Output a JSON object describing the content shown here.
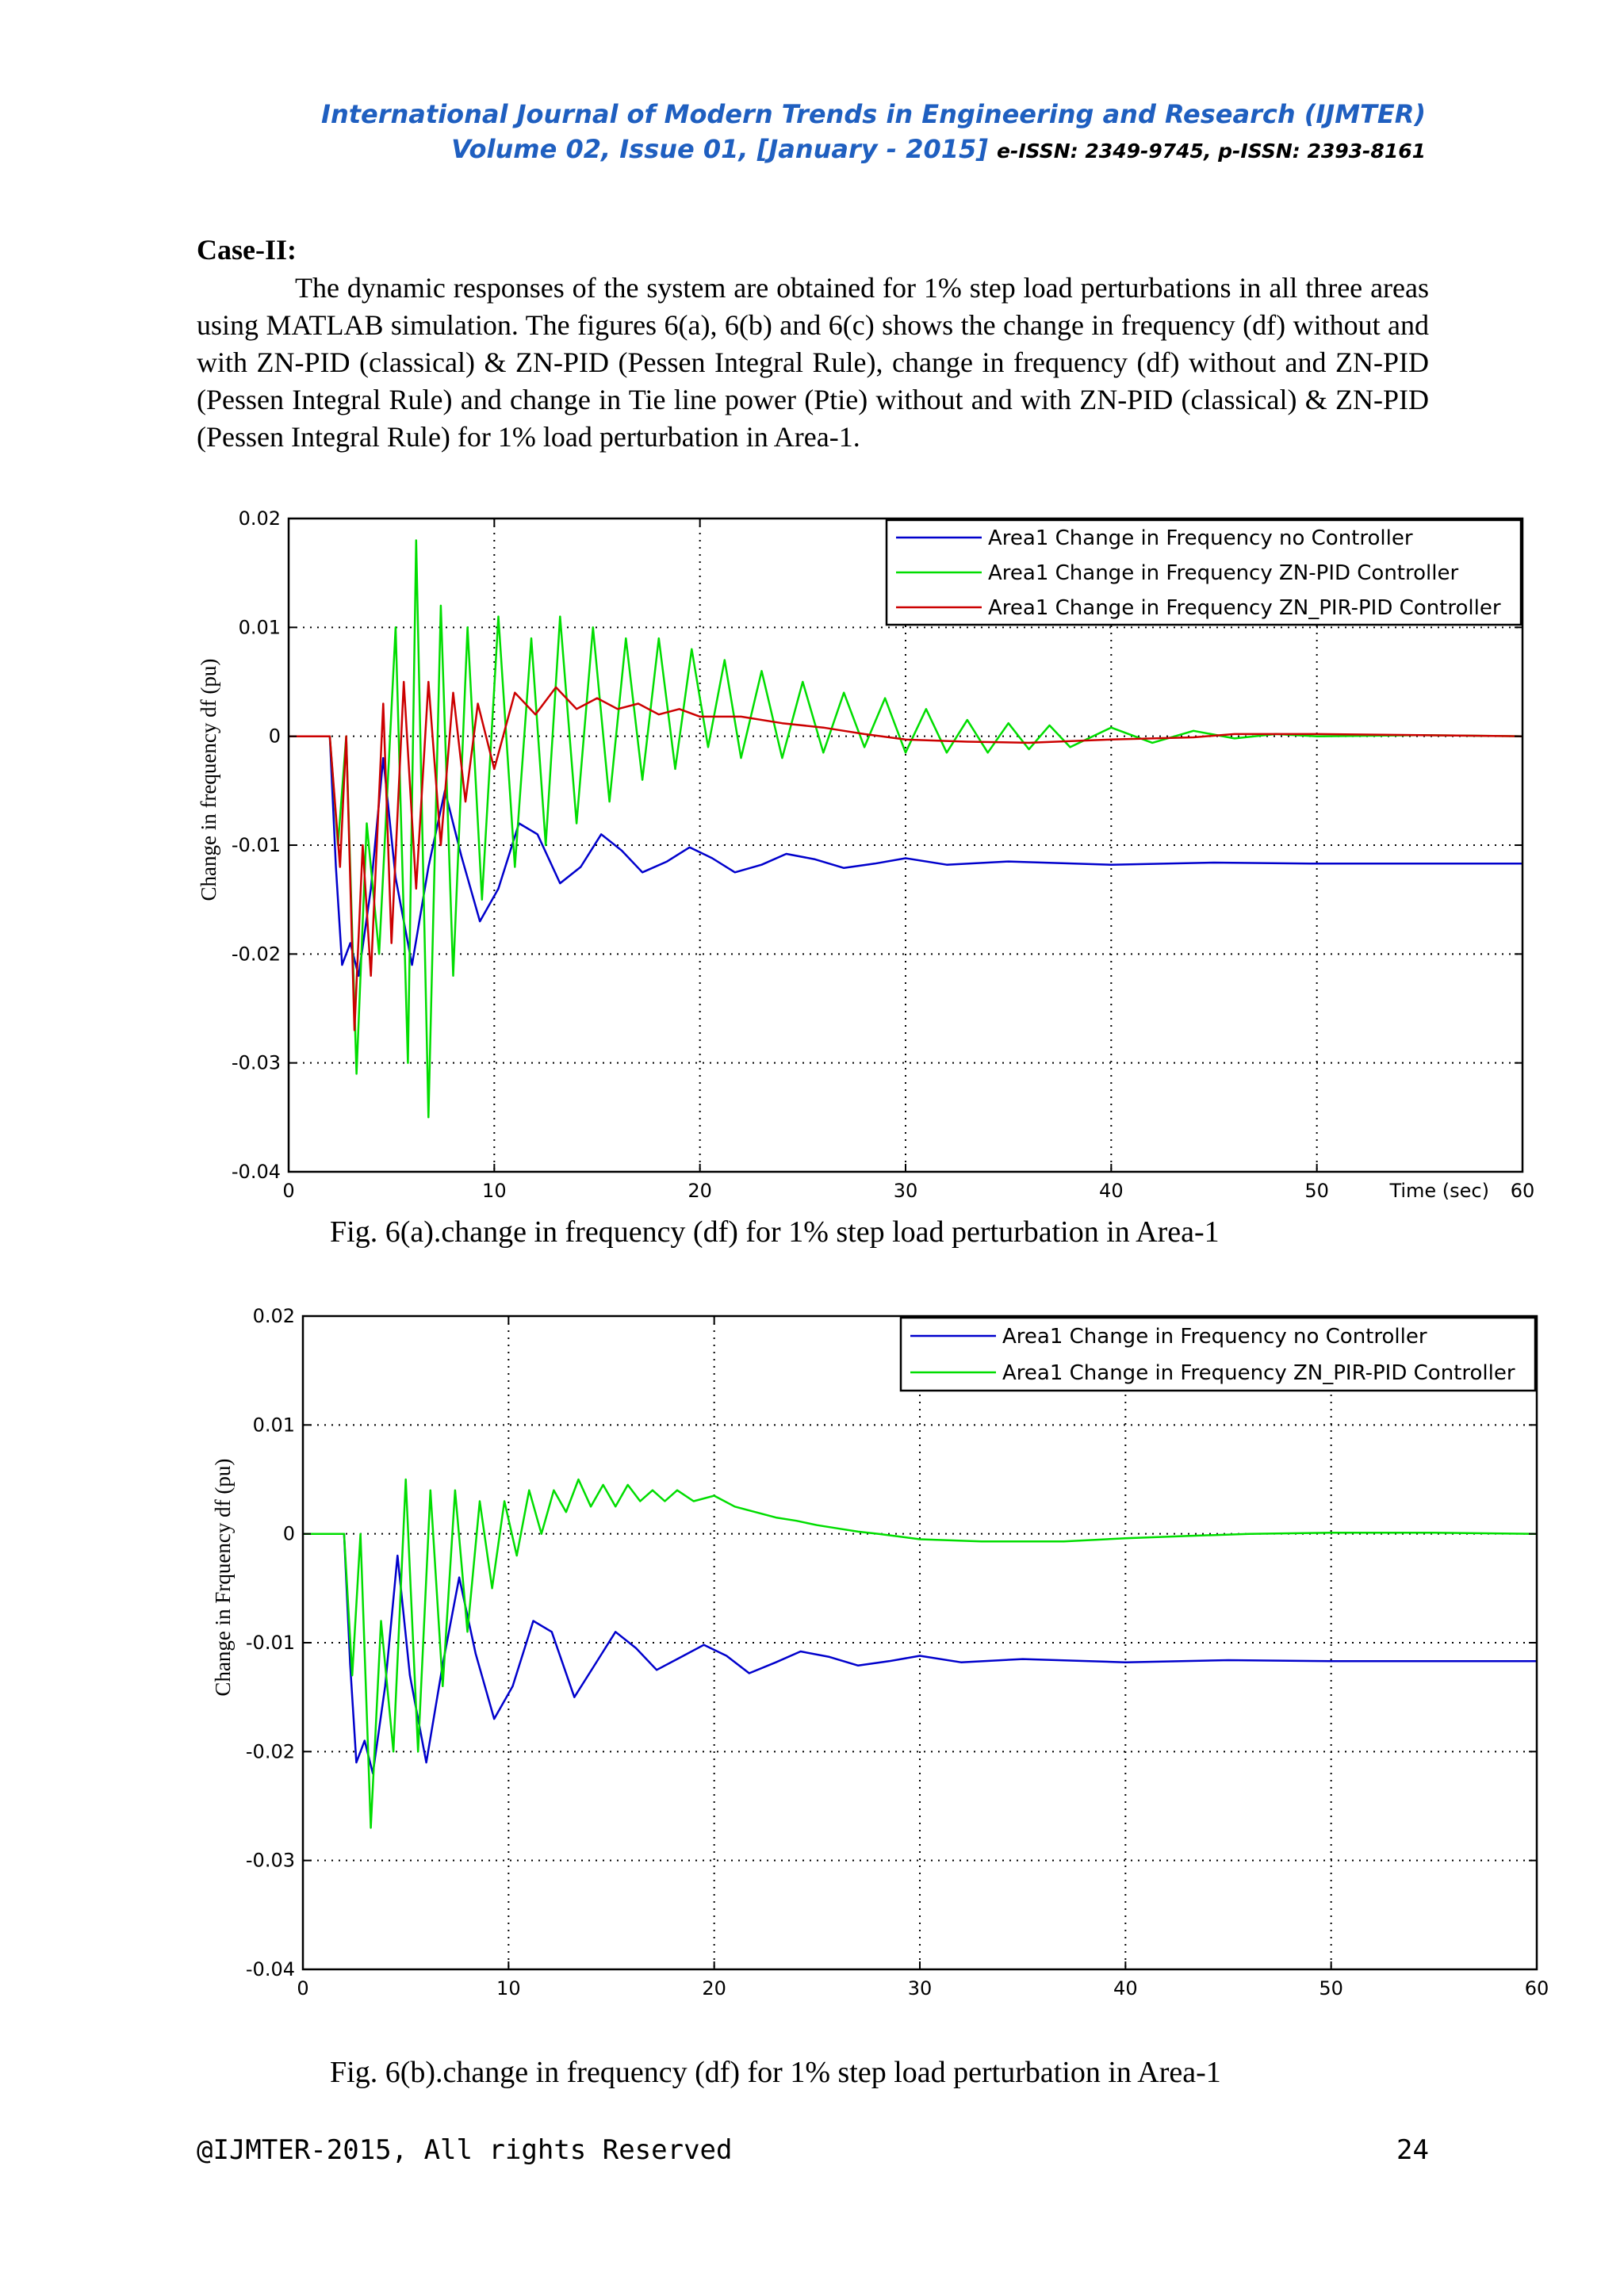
{
  "header": {
    "journal": "International Journal of Modern Trends in Engineering and Research (IJMTER)",
    "volume": "Volume 02, Issue 01, [January - 2015]",
    "issn": "e-ISSN: 2349-9745, p-ISSN: 2393-8161"
  },
  "section": {
    "title": "Case-II:",
    "paragraph": "The dynamic responses of the system are obtained for 1% step load perturbations in all three areas using MATLAB simulation. The figures 6(a), 6(b) and 6(c) shows the change in frequency (df) without and with ZN-PID (classical) & ZN-PID (Pessen Integral Rule), change in frequency (df) without and ZN-PID (Pessen Integral Rule) and change in Tie line power (Ptie) without and with ZN-PID (classical) & ZN-PID (Pessen Integral Rule) for 1% load perturbation in Area-1."
  },
  "figures": [
    {
      "caption": "Fig. 6(a).change in frequency (df) for 1% step load perturbation in Area-1"
    },
    {
      "caption": "Fig. 6(b).change in frequency (df) for 1% step load perturbation in Area-1"
    }
  ],
  "footer": {
    "copyright": "@IJMTER-2015, All rights Reserved",
    "page": "24"
  },
  "chart_data": [
    {
      "type": "line",
      "title": "",
      "xlabel": "Time (sec)",
      "ylabel": "Change in frequency df (pu)",
      "xlim": [
        0,
        60
      ],
      "ylim": [
        -0.04,
        0.02
      ],
      "x_ticks": [
        "0",
        "10",
        "20",
        "30",
        "40",
        "50",
        "60"
      ],
      "y_ticks": [
        "0.02",
        "0.01",
        "0",
        "-0.01",
        "-0.02",
        "-0.03",
        "-0.04"
      ],
      "grid": true,
      "legend_position": "top-right",
      "series": [
        {
          "name": "Area1 Change in Frequency no Controller",
          "color": "#0000cc",
          "points": [
            [
              0,
              0
            ],
            [
              2,
              0
            ],
            [
              2.3,
              -0.012
            ],
            [
              2.6,
              -0.021
            ],
            [
              3.0,
              -0.019
            ],
            [
              3.4,
              -0.022
            ],
            [
              4.0,
              -0.014
            ],
            [
              4.6,
              -0.002
            ],
            [
              5.2,
              -0.013
            ],
            [
              6.0,
              -0.021
            ],
            [
              6.8,
              -0.012
            ],
            [
              7.6,
              -0.005
            ],
            [
              8.4,
              -0.011
            ],
            [
              9.3,
              -0.017
            ],
            [
              10.2,
              -0.014
            ],
            [
              11.2,
              -0.008
            ],
            [
              12.1,
              -0.009
            ],
            [
              13.2,
              -0.0135
            ],
            [
              14.2,
              -0.012
            ],
            [
              15.2,
              -0.009
            ],
            [
              16.2,
              -0.0105
            ],
            [
              17.2,
              -0.0125
            ],
            [
              18.4,
              -0.0115
            ],
            [
              19.5,
              -0.0102
            ],
            [
              20.6,
              -0.0112
            ],
            [
              21.7,
              -0.0125
            ],
            [
              23,
              -0.0118
            ],
            [
              24.2,
              -0.0108
            ],
            [
              25.6,
              -0.0113
            ],
            [
              27,
              -0.0121
            ],
            [
              28.5,
              -0.0117
            ],
            [
              30,
              -0.0112
            ],
            [
              32,
              -0.0118
            ],
            [
              35,
              -0.0115
            ],
            [
              40,
              -0.0118
            ],
            [
              45,
              -0.0116
            ],
            [
              50,
              -0.0117
            ],
            [
              60,
              -0.0117
            ]
          ]
        },
        {
          "name": "Area1 Change in Frequency  ZN-PID Controller",
          "color": "#00dd00",
          "points": [
            [
              0,
              0
            ],
            [
              2,
              0
            ],
            [
              2.4,
              -0.01
            ],
            [
              2.8,
              0.0
            ],
            [
              3.3,
              -0.031
            ],
            [
              3.8,
              -0.008
            ],
            [
              4.4,
              -0.02
            ],
            [
              5.2,
              0.01
            ],
            [
              5.8,
              -0.03
            ],
            [
              6.2,
              0.018
            ],
            [
              6.8,
              -0.035
            ],
            [
              7.4,
              0.012
            ],
            [
              8.0,
              -0.022
            ],
            [
              8.7,
              0.01
            ],
            [
              9.4,
              -0.015
            ],
            [
              10.2,
              0.011
            ],
            [
              11.0,
              -0.012
            ],
            [
              11.8,
              0.009
            ],
            [
              12.5,
              -0.01
            ],
            [
              13.2,
              0.011
            ],
            [
              14.0,
              -0.008
            ],
            [
              14.8,
              0.01
            ],
            [
              15.6,
              -0.006
            ],
            [
              16.4,
              0.009
            ],
            [
              17.2,
              -0.004
            ],
            [
              18.0,
              0.009
            ],
            [
              18.8,
              -0.003
            ],
            [
              19.6,
              0.008
            ],
            [
              20.4,
              -0.001
            ],
            [
              21.2,
              0.007
            ],
            [
              22.0,
              -0.002
            ],
            [
              23,
              0.006
            ],
            [
              24,
              -0.002
            ],
            [
              25,
              0.005
            ],
            [
              26,
              -0.0015
            ],
            [
              27,
              0.004
            ],
            [
              28,
              -0.001
            ],
            [
              29,
              0.0035
            ],
            [
              30,
              -0.0015
            ],
            [
              31,
              0.0025
            ],
            [
              32,
              -0.0015
            ],
            [
              33,
              0.0015
            ],
            [
              34,
              -0.0015
            ],
            [
              35,
              0.0012
            ],
            [
              36,
              -0.0012
            ],
            [
              37,
              0.001
            ],
            [
              38,
              -0.001
            ],
            [
              40,
              0.0008
            ],
            [
              42,
              -0.0006
            ],
            [
              44,
              0.0005
            ],
            [
              46,
              -0.0002
            ],
            [
              48,
              0.0002
            ],
            [
              50,
              0.0
            ],
            [
              55,
              0.0001
            ],
            [
              60,
              0.0
            ]
          ]
        },
        {
          "name": "Area1 Change in Frequency ZN_PIR-PID Controller",
          "color": "#cc0000",
          "points": [
            [
              0,
              0
            ],
            [
              2,
              0
            ],
            [
              2.5,
              -0.012
            ],
            [
              2.8,
              0.0
            ],
            [
              3.2,
              -0.027
            ],
            [
              3.6,
              -0.01
            ],
            [
              4.0,
              -0.022
            ],
            [
              4.6,
              0.003
            ],
            [
              5.0,
              -0.019
            ],
            [
              5.6,
              0.005
            ],
            [
              6.2,
              -0.014
            ],
            [
              6.8,
              0.005
            ],
            [
              7.4,
              -0.01
            ],
            [
              8.0,
              0.004
            ],
            [
              8.6,
              -0.006
            ],
            [
              9.2,
              0.003
            ],
            [
              10,
              -0.003
            ],
            [
              11,
              0.004
            ],
            [
              12,
              0.002
            ],
            [
              13,
              0.0045
            ],
            [
              14,
              0.0025
            ],
            [
              15,
              0.0035
            ],
            [
              16,
              0.0025
            ],
            [
              17,
              0.003
            ],
            [
              18,
              0.002
            ],
            [
              19,
              0.0025
            ],
            [
              20,
              0.0018
            ],
            [
              22,
              0.0018
            ],
            [
              24,
              0.0012
            ],
            [
              26,
              0.0008
            ],
            [
              27,
              0.0005
            ],
            [
              28,
              0.0002
            ],
            [
              30,
              -0.0003
            ],
            [
              33,
              -0.0005
            ],
            [
              36,
              -0.0006
            ],
            [
              40,
              -0.0003
            ],
            [
              44,
              -0.0001
            ],
            [
              46,
              0.0002
            ],
            [
              50,
              0.0002
            ],
            [
              55,
              0.0001
            ],
            [
              60,
              0.0
            ]
          ]
        }
      ]
    },
    {
      "type": "line",
      "title": "",
      "xlabel": "",
      "ylabel": "Change in Frquency df (pu)",
      "xlim": [
        0,
        60
      ],
      "ylim": [
        -0.04,
        0.02
      ],
      "x_ticks": [
        "0",
        "10",
        "20",
        "30",
        "40",
        "50",
        "60"
      ],
      "y_ticks": [
        "0.02",
        "0.01",
        "0",
        "-0.01",
        "-0.02",
        "-0.03",
        "-0.04"
      ],
      "grid": true,
      "legend_position": "top-right",
      "series": [
        {
          "name": "Area1 Change in Frequency no Controller",
          "color": "#0000cc",
          "points": [
            [
              0,
              0
            ],
            [
              2,
              0
            ],
            [
              2.3,
              -0.012
            ],
            [
              2.6,
              -0.021
            ],
            [
              3.0,
              -0.019
            ],
            [
              3.4,
              -0.022
            ],
            [
              4.0,
              -0.014
            ],
            [
              4.6,
              -0.002
            ],
            [
              5.2,
              -0.013
            ],
            [
              6.0,
              -0.021
            ],
            [
              6.8,
              -0.012
            ],
            [
              7.6,
              -0.004
            ],
            [
              8.4,
              -0.011
            ],
            [
              9.3,
              -0.017
            ],
            [
              10.2,
              -0.014
            ],
            [
              11.2,
              -0.008
            ],
            [
              12.1,
              -0.009
            ],
            [
              13.2,
              -0.015
            ],
            [
              14.2,
              -0.012
            ],
            [
              15.2,
              -0.009
            ],
            [
              16.2,
              -0.0105
            ],
            [
              17.2,
              -0.0125
            ],
            [
              18.4,
              -0.0113
            ],
            [
              19.5,
              -0.0102
            ],
            [
              20.6,
              -0.0112
            ],
            [
              21.7,
              -0.0128
            ],
            [
              23,
              -0.0118
            ],
            [
              24.2,
              -0.0108
            ],
            [
              25.6,
              -0.0113
            ],
            [
              27,
              -0.0121
            ],
            [
              28.5,
              -0.0117
            ],
            [
              30,
              -0.0112
            ],
            [
              32,
              -0.0118
            ],
            [
              35,
              -0.0115
            ],
            [
              40,
              -0.0118
            ],
            [
              45,
              -0.0116
            ],
            [
              50,
              -0.0117
            ],
            [
              60,
              -0.0117
            ]
          ]
        },
        {
          "name": "Area1 Change in Frequency ZN_PIR-PID Controller",
          "color": "#00dd00",
          "points": [
            [
              0,
              0
            ],
            [
              2,
              0
            ],
            [
              2.4,
              -0.013
            ],
            [
              2.8,
              0.0
            ],
            [
              3.3,
              -0.027
            ],
            [
              3.8,
              -0.008
            ],
            [
              4.4,
              -0.02
            ],
            [
              5.0,
              0.005
            ],
            [
              5.6,
              -0.02
            ],
            [
              6.2,
              0.004
            ],
            [
              6.8,
              -0.014
            ],
            [
              7.4,
              0.004
            ],
            [
              8.0,
              -0.009
            ],
            [
              8.6,
              0.003
            ],
            [
              9.2,
              -0.005
            ],
            [
              9.8,
              0.003
            ],
            [
              10.4,
              -0.002
            ],
            [
              11.0,
              0.004
            ],
            [
              11.6,
              0.0
            ],
            [
              12.2,
              0.004
            ],
            [
              12.8,
              0.002
            ],
            [
              13.4,
              0.005
            ],
            [
              14.0,
              0.0025
            ],
            [
              14.6,
              0.0045
            ],
            [
              15.2,
              0.0025
            ],
            [
              15.8,
              0.0045
            ],
            [
              16.4,
              0.003
            ],
            [
              17,
              0.004
            ],
            [
              17.6,
              0.003
            ],
            [
              18.2,
              0.004
            ],
            [
              19,
              0.003
            ],
            [
              20,
              0.0035
            ],
            [
              21,
              0.0025
            ],
            [
              22,
              0.002
            ],
            [
              23,
              0.0015
            ],
            [
              24,
              0.0012
            ],
            [
              25,
              0.0008
            ],
            [
              26,
              0.0005
            ],
            [
              27,
              0.0002
            ],
            [
              28,
              0.0
            ],
            [
              30,
              -0.0005
            ],
            [
              33,
              -0.0007
            ],
            [
              37,
              -0.0007
            ],
            [
              40,
              -0.0004
            ],
            [
              43,
              -0.0002
            ],
            [
              46,
              0.0
            ],
            [
              50,
              0.0001
            ],
            [
              55,
              0.0001
            ],
            [
              60,
              0.0
            ]
          ]
        }
      ]
    }
  ]
}
